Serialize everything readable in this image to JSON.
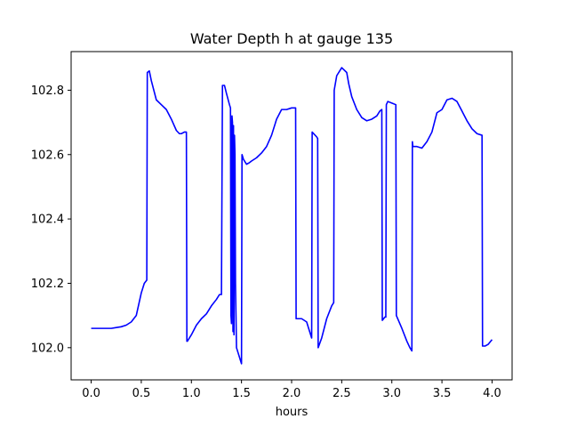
{
  "chart_data": {
    "type": "line",
    "title": "Water Depth h at gauge 135",
    "xlabel": "hours",
    "ylabel": "",
    "xlim": [
      -0.2,
      4.2
    ],
    "ylim": [
      101.9,
      102.92
    ],
    "xticks": [
      0.0,
      0.5,
      1.0,
      1.5,
      2.0,
      2.5,
      3.0,
      3.5,
      4.0
    ],
    "xtick_labels": [
      "0.0",
      "0.5",
      "1.0",
      "1.5",
      "2.0",
      "2.5",
      "3.0",
      "3.5",
      "4.0"
    ],
    "yticks": [
      102.0,
      102.2,
      102.4,
      102.6,
      102.8
    ],
    "ytick_labels": [
      "102.0",
      "102.2",
      "102.4",
      "102.6",
      "102.8"
    ],
    "grid": false,
    "series": [
      {
        "color": "#0000ff",
        "x": [
          0.0,
          0.1,
          0.2,
          0.3,
          0.35,
          0.4,
          0.45,
          0.5,
          0.53,
          0.555,
          0.56,
          0.58,
          0.6,
          0.65,
          0.7,
          0.75,
          0.8,
          0.85,
          0.88,
          0.9,
          0.93,
          0.95,
          0.955,
          0.96,
          1.0,
          1.05,
          1.1,
          1.15,
          1.2,
          1.25,
          1.28,
          1.3,
          1.31,
          1.33,
          1.35,
          1.38,
          1.39,
          1.395,
          1.4,
          1.405,
          1.41,
          1.415,
          1.42,
          1.425,
          1.43,
          1.435,
          1.44,
          1.445,
          1.45,
          1.5,
          1.505,
          1.52,
          1.55,
          1.58,
          1.6,
          1.65,
          1.7,
          1.75,
          1.8,
          1.85,
          1.9,
          1.95,
          2.0,
          2.04,
          2.045,
          2.1,
          2.15,
          2.18,
          2.2,
          2.205,
          2.25,
          2.26,
          2.265,
          2.3,
          2.35,
          2.4,
          2.42,
          2.425,
          2.45,
          2.5,
          2.55,
          2.57,
          2.6,
          2.65,
          2.7,
          2.75,
          2.8,
          2.85,
          2.88,
          2.9,
          2.905,
          2.93,
          2.94,
          2.945,
          2.96,
          3.0,
          3.04,
          3.045,
          3.1,
          3.15,
          3.18,
          3.2,
          3.205,
          3.21,
          3.25,
          3.3,
          3.35,
          3.4,
          3.45,
          3.5,
          3.55,
          3.6,
          3.65,
          3.7,
          3.75,
          3.8,
          3.85,
          3.9,
          3.905,
          3.93,
          3.96,
          4.0
        ],
        "values": [
          102.06,
          102.06,
          102.06,
          102.065,
          102.07,
          102.08,
          102.1,
          102.17,
          102.2,
          102.21,
          102.855,
          102.86,
          102.83,
          102.77,
          102.755,
          102.74,
          102.71,
          102.675,
          102.665,
          102.665,
          102.67,
          102.67,
          102.02,
          102.02,
          102.04,
          102.07,
          102.09,
          102.105,
          102.13,
          102.15,
          102.165,
          102.165,
          102.815,
          102.815,
          102.79,
          102.755,
          102.745,
          102.1,
          102.075,
          102.72,
          102.7,
          102.05,
          102.69,
          102.04,
          102.66,
          102.6,
          102.2,
          102.1,
          102.0,
          101.95,
          102.6,
          102.585,
          102.57,
          102.575,
          102.58,
          102.59,
          102.605,
          102.625,
          102.66,
          102.71,
          102.74,
          102.74,
          102.745,
          102.745,
          102.09,
          102.09,
          102.08,
          102.05,
          102.03,
          102.67,
          102.655,
          102.65,
          102.0,
          102.03,
          102.09,
          102.13,
          102.14,
          102.8,
          102.845,
          102.87,
          102.855,
          102.82,
          102.78,
          102.74,
          102.715,
          102.705,
          102.71,
          102.72,
          102.735,
          102.74,
          102.085,
          102.095,
          102.095,
          102.755,
          102.765,
          102.76,
          102.755,
          102.1,
          102.06,
          102.02,
          102.0,
          101.99,
          102.64,
          102.625,
          102.625,
          102.62,
          102.64,
          102.67,
          102.73,
          102.74,
          102.77,
          102.775,
          102.765,
          102.735,
          102.705,
          102.68,
          102.665,
          102.66,
          102.005,
          102.005,
          102.01,
          102.025
        ]
      }
    ]
  }
}
